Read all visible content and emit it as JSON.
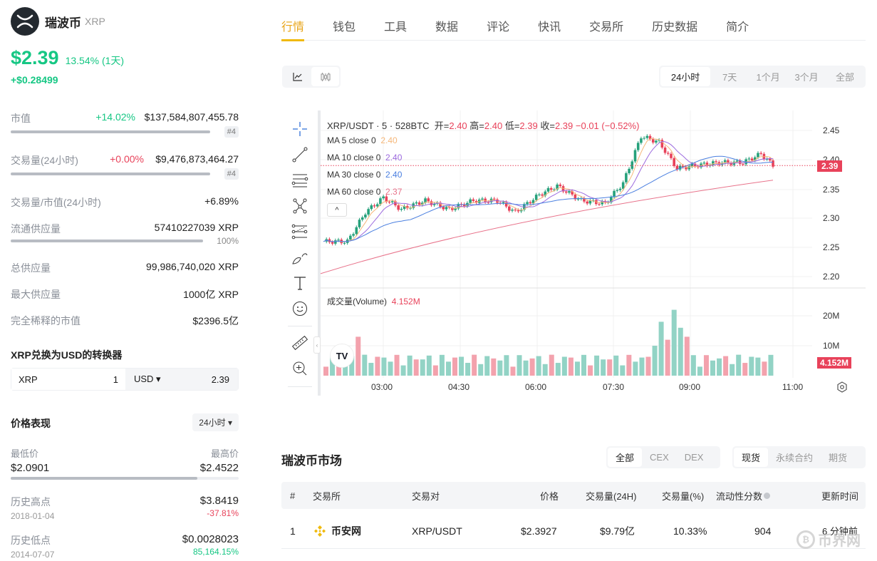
{
  "coin": {
    "name": "瑞波币",
    "symbol": "XRP",
    "price": "$2.39",
    "change_pct": "13.54% (1天)",
    "change_abs": "+$0.28499"
  },
  "stats": {
    "market_cap": {
      "label": "市值",
      "pct": "+14.02%",
      "value": "$137,584,807,455.78",
      "rank": "#4"
    },
    "volume": {
      "label": "交易量(24小时)",
      "pct": "+0.00%",
      "value": "$9,476,873,464.27",
      "rank": "#4"
    },
    "vol_mcap": {
      "label": "交易量/市值(24小时)",
      "value": "+6.89%"
    },
    "circulating": {
      "label": "流通供应量",
      "value": "57410227039 XRP",
      "pct": "100%"
    },
    "total_supply": {
      "label": "总供应量",
      "value": "99,986,740,020 XRP"
    },
    "max_supply": {
      "label": "最大供应量",
      "value": "1000亿 XRP"
    },
    "fdv": {
      "label": "完全稀释的市值",
      "value": "$2396.5亿"
    }
  },
  "converter": {
    "title": "XRP兑换为USD的转换器",
    "from_symbol": "XRP",
    "from_value": "1",
    "to_symbol": "USD ▾",
    "to_value": "2.39"
  },
  "performance": {
    "title": "价格表现",
    "period": "24小时 ▾",
    "low_label": "最低价",
    "low": "$2.0901",
    "high_label": "最高价",
    "high": "$2.4522",
    "ath_label": "历史高点",
    "ath_date": "2018-01-04",
    "ath": "$3.8419",
    "ath_pct": "-37.81%",
    "atl_label": "历史低点",
    "atl_date": "2014-07-07",
    "atl": "$0.0028023",
    "atl_pct": "85,164.15%"
  },
  "tabs": [
    "行情",
    "钱包",
    "工具",
    "数据",
    "评论",
    "快讯",
    "交易所",
    "历史数据",
    "简介"
  ],
  "ranges": [
    "24小时",
    "7天",
    "1个月",
    "3个月",
    "全部"
  ],
  "chart": {
    "pair": "XRP/USDT · 5 · 528BTC",
    "ohlc": {
      "o_label": "开=",
      "o": "2.40",
      "h_label": "高=",
      "h": "2.40",
      "l_label": "低=",
      "l": "2.39",
      "c_label": "收=",
      "c": "2.39",
      "chg": "−0.01 (−0.52%)"
    },
    "ma": [
      {
        "label": "MA 5 close 0",
        "value": "2.40",
        "color": "#f5b77a"
      },
      {
        "label": "MA 10 close 0",
        "value": "2.40",
        "color": "#9c6ade"
      },
      {
        "label": "MA 30 close 0",
        "value": "2.40",
        "color": "#4a7fe0"
      },
      {
        "label": "MA 60 close 0",
        "value": "2.37",
        "color": "#e8728a"
      }
    ],
    "volume_label": "成交量(Volume)",
    "volume_value": "4.152M",
    "price_ticks": [
      "2.45",
      "2.40",
      "2.35",
      "2.30",
      "2.25",
      "2.20"
    ],
    "volume_ticks": [
      "20M",
      "10M"
    ],
    "time_ticks": [
      "03:00",
      "04:30",
      "06:00",
      "07:30",
      "09:00",
      "11:00"
    ],
    "last_price_tag": "2.39",
    "last_volume_tag": "4.152M",
    "up_color": "#26a17b",
    "down_color": "#e8425a"
  },
  "market": {
    "title": "瑞波币市场",
    "filter1": [
      "全部",
      "CEX",
      "DEX"
    ],
    "filter2": [
      "现货",
      "永续合约",
      "期货"
    ],
    "columns": [
      "#",
      "交易所",
      "交易对",
      "价格",
      "交易量(24H)",
      "交易量(%)",
      "流动性分数",
      "更新时间"
    ],
    "rows": [
      {
        "rank": "1",
        "exchange": "币安网",
        "pair": "XRP/USDT",
        "price": "$2.3927",
        "volume": "$9.79亿",
        "volume_pct": "10.33%",
        "liquidity": "904",
        "updated": "6 分钟前"
      }
    ]
  },
  "watermark": "币界网"
}
